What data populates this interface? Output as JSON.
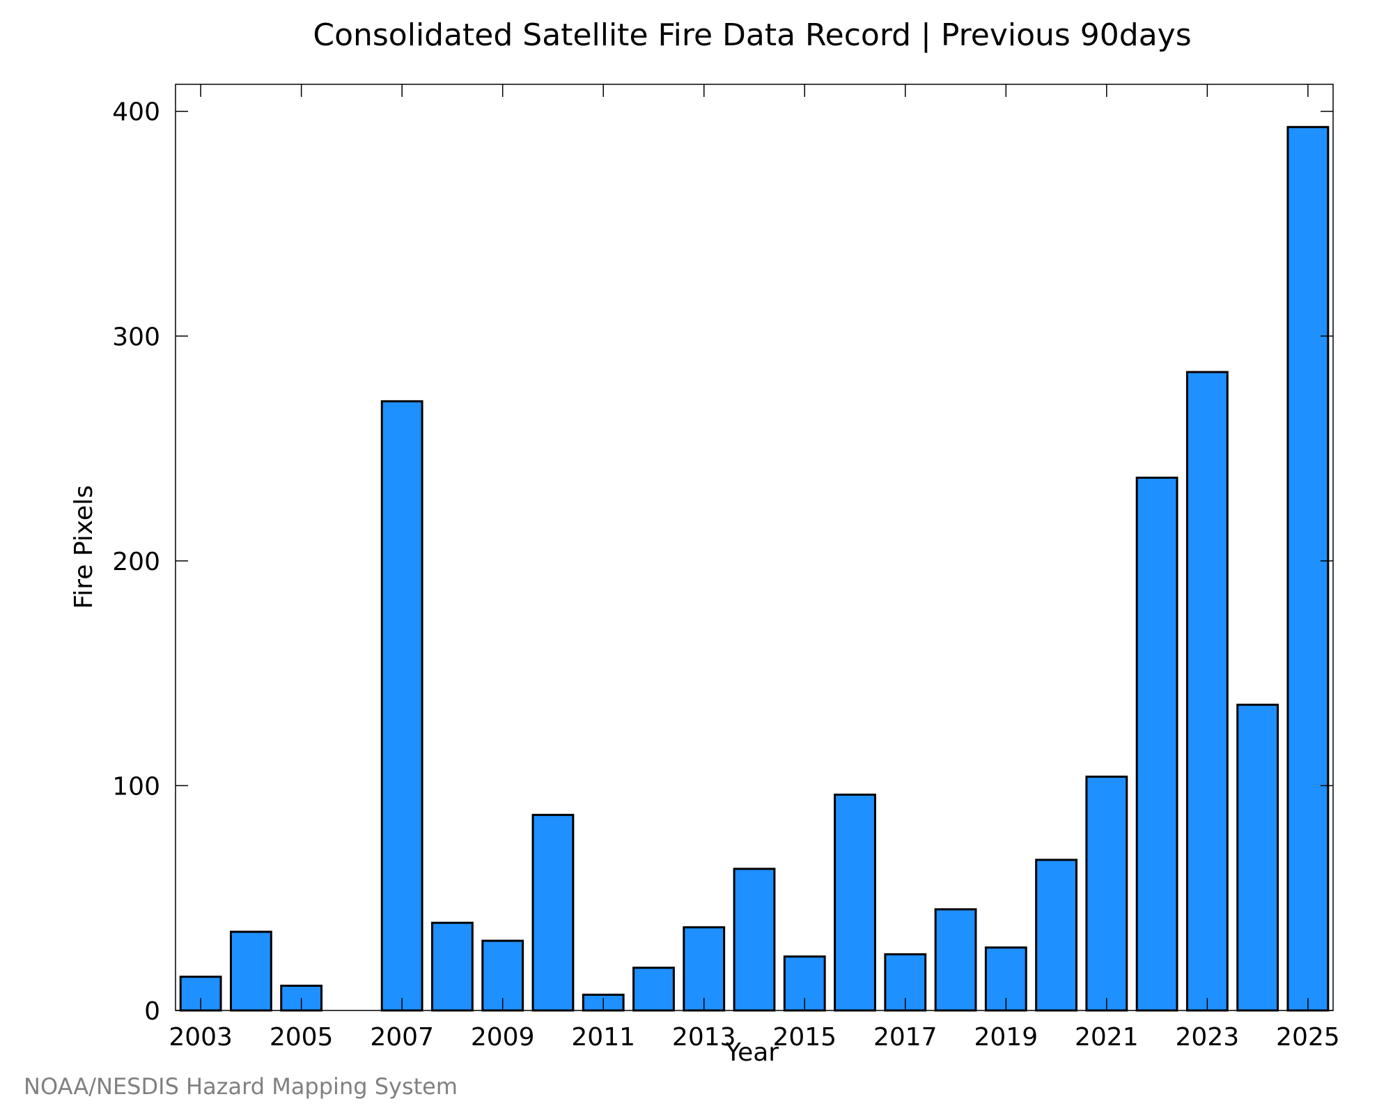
{
  "chart_data": {
    "type": "bar",
    "title": "Consolidated Satellite Fire Data Record | Previous 90days",
    "xlabel": "Year",
    "ylabel": "Fire Pixels",
    "categories": [
      "2003",
      "2004",
      "2005",
      "2006",
      "2007",
      "2008",
      "2009",
      "2010",
      "2011",
      "2012",
      "2013",
      "2014",
      "2015",
      "2016",
      "2017",
      "2018",
      "2019",
      "2020",
      "2021",
      "2022",
      "2023",
      "2024",
      "2025"
    ],
    "values": [
      15,
      35,
      11,
      0,
      271,
      39,
      31,
      87,
      7,
      19,
      37,
      63,
      24,
      96,
      25,
      45,
      28,
      67,
      104,
      237,
      284,
      136,
      393
    ],
    "x_tick_labels": [
      "2003",
      "2005",
      "2007",
      "2009",
      "2011",
      "2013",
      "2015",
      "2017",
      "2019",
      "2021",
      "2023",
      "2025"
    ],
    "y_ticks": [
      0,
      100,
      200,
      300,
      400
    ],
    "ylim": [
      0,
      412
    ],
    "grid": false,
    "bar_color": "#1e90ff",
    "bar_edge_color": "#000000"
  },
  "credit": "NOAA/NESDIS Hazard Mapping System"
}
